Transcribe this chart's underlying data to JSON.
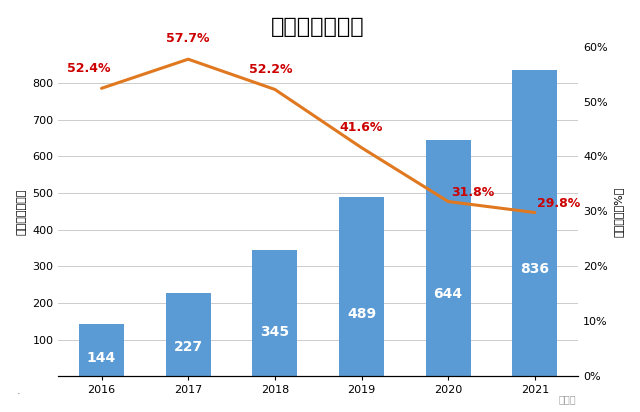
{
  "title": "阿里自然年营收",
  "years": [
    "2016",
    "2017",
    "2018",
    "2019",
    "2020",
    "2021"
  ],
  "revenue": [
    144,
    227,
    345,
    489,
    644,
    836
  ],
  "growth_rate": [
    52.4,
    57.7,
    52.2,
    41.6,
    31.8,
    29.8
  ],
  "bar_color": "#5B9BD5",
  "line_color": "#E07820",
  "bar_label_color": "white",
  "growth_label_color": "#CC0000",
  "ylabel_left": "营收（十亿元）",
  "ylabel_right": "同比增长（%）",
  "ylim_left": [
    0,
    900
  ],
  "ylim_right": [
    0,
    60
  ],
  "yticks_left": [
    100,
    200,
    300,
    400,
    500,
    600,
    700,
    800
  ],
  "yticks_right": [
    0,
    10,
    20,
    30,
    40,
    50,
    60
  ],
  "background_color": "#FFFFFF",
  "grid_color": "#CCCCCC",
  "title_fontsize": 16,
  "bar_label_fontsize": 10,
  "growth_label_fontsize": 9,
  "tick_fontsize": 8,
  "ylabel_fontsize": 8,
  "watermark": "新智元",
  "growth_label_offsets_x": [
    -0.15,
    0.0,
    -0.05,
    0.0,
    0.28,
    0.28
  ],
  "growth_label_offsets_y": [
    2.5,
    2.5,
    2.5,
    2.5,
    0.5,
    0.5
  ]
}
